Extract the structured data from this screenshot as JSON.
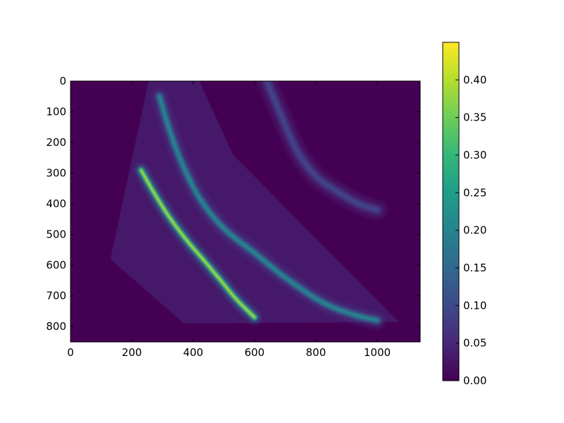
{
  "chart_data": {
    "type": "heatmap",
    "title": "",
    "xlabel": "",
    "ylabel": "",
    "xlim": [
      0,
      1140
    ],
    "ylim": [
      850,
      0
    ],
    "x_ticks": [
      "0",
      "200",
      "400",
      "600",
      "800",
      "1000"
    ],
    "x_tick_values": [
      0,
      200,
      400,
      600,
      800,
      1000
    ],
    "y_ticks": [
      "0",
      "100",
      "200",
      "300",
      "400",
      "500",
      "600",
      "700",
      "800"
    ],
    "y_tick_values": [
      0,
      100,
      200,
      300,
      400,
      500,
      600,
      700,
      800
    ],
    "colormap": "viridis",
    "colorbar": {
      "range": [
        0.0,
        0.45
      ],
      "ticks": [
        "0.00",
        "0.05",
        "0.10",
        "0.15",
        "0.20",
        "0.25",
        "0.30",
        "0.35",
        "0.40"
      ],
      "tick_values": [
        0.0,
        0.05,
        0.1,
        0.15,
        0.2,
        0.25,
        0.3,
        0.35,
        0.4
      ]
    },
    "background_value": 0.0,
    "detector_region": {
      "value": 0.03,
      "outline": [
        [
          270,
          0
        ],
        [
          420,
          0
        ],
        [
          530,
          240
        ],
        [
          1070,
          785
        ],
        [
          370,
          790
        ],
        [
          130,
          580
        ],
        [
          255,
          0
        ]
      ]
    },
    "bands": [
      {
        "peak_value": 0.42,
        "width": 18,
        "path": [
          [
            230,
            290
          ],
          [
            270,
            360
          ],
          [
            320,
            440
          ],
          [
            380,
            520
          ],
          [
            440,
            590
          ],
          [
            490,
            650
          ],
          [
            540,
            710
          ],
          [
            600,
            770
          ]
        ]
      },
      {
        "peak_value": 0.22,
        "width": 22,
        "path": [
          [
            290,
            50
          ],
          [
            320,
            150
          ],
          [
            360,
            260
          ],
          [
            420,
            380
          ],
          [
            500,
            480
          ],
          [
            600,
            560
          ],
          [
            700,
            640
          ],
          [
            820,
            720
          ],
          [
            920,
            760
          ],
          [
            1000,
            780
          ]
        ]
      },
      {
        "peak_value": 0.1,
        "width": 28,
        "path": [
          [
            640,
            0
          ],
          [
            690,
            120
          ],
          [
            740,
            230
          ],
          [
            800,
            310
          ],
          [
            870,
            360
          ],
          [
            940,
            400
          ],
          [
            1000,
            420
          ]
        ]
      }
    ]
  },
  "colors": {
    "viridis_stops": [
      "#440154",
      "#482777",
      "#3e4989",
      "#31688e",
      "#26828e",
      "#1f9e89",
      "#35b779",
      "#6ece58",
      "#b5de2b",
      "#fde725"
    ]
  }
}
